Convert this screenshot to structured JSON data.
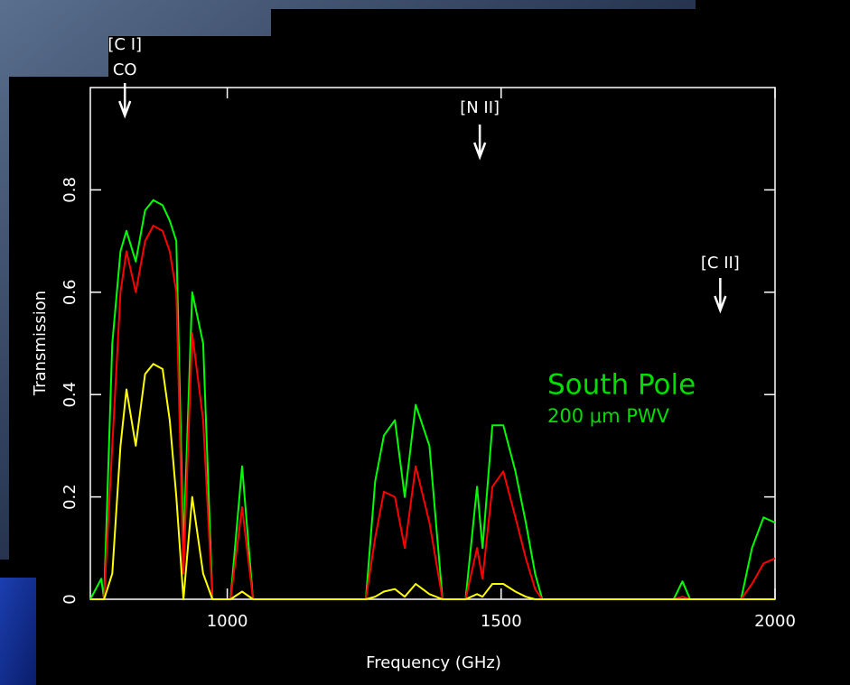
{
  "chart_data": {
    "type": "line",
    "x": [
      750,
      770,
      775,
      790,
      805,
      816,
      833,
      850,
      865,
      882,
      895,
      907,
      920,
      936,
      956,
      973,
      990,
      1006,
      1027,
      1047,
      1100,
      1200,
      1253,
      1270,
      1286,
      1306,
      1324,
      1344,
      1369,
      1393,
      1420,
      1435,
      1456,
      1466,
      1484,
      1504,
      1526,
      1545,
      1562,
      1575,
      1600,
      1700,
      1815,
      1831,
      1845,
      1900,
      1938,
      1958,
      1979,
      2000
    ],
    "series": [
      {
        "color": "#00ff00",
        "values": [
          0,
          0.04,
          0,
          0.5,
          0.68,
          0.72,
          0.66,
          0.76,
          0.78,
          0.77,
          0.74,
          0.7,
          0.1,
          0.6,
          0.5,
          0,
          0,
          0,
          0.26,
          0,
          0,
          0,
          0,
          0.23,
          0.32,
          0.35,
          0.2,
          0.38,
          0.3,
          0,
          0,
          0,
          0.22,
          0.1,
          0.34,
          0.34,
          0.25,
          0.15,
          0.05,
          0,
          0,
          0,
          0,
          0.035,
          0,
          0,
          0,
          0.1,
          0.16,
          0.15
        ]
      },
      {
        "color": "#ff0000",
        "values": [
          0,
          0,
          0,
          0.3,
          0.6,
          0.68,
          0.6,
          0.7,
          0.73,
          0.72,
          0.68,
          0.6,
          0.05,
          0.52,
          0.35,
          0,
          0,
          0,
          0.18,
          0,
          0,
          0,
          0,
          0.12,
          0.21,
          0.2,
          0.1,
          0.26,
          0.15,
          0,
          0,
          0,
          0.1,
          0.04,
          0.22,
          0.25,
          0.16,
          0.08,
          0.02,
          0,
          0,
          0,
          0,
          0.005,
          0,
          0,
          0,
          0.03,
          0.07,
          0.08
        ]
      },
      {
        "color": "#ffff00",
        "values": [
          0,
          0,
          0,
          0.05,
          0.3,
          0.41,
          0.3,
          0.44,
          0.46,
          0.45,
          0.35,
          0.2,
          0,
          0.2,
          0.05,
          0,
          0,
          0,
          0.015,
          0,
          0,
          0,
          0,
          0.005,
          0.015,
          0.02,
          0.005,
          0.03,
          0.01,
          0,
          0,
          0,
          0.01,
          0.005,
          0.03,
          0.03,
          0.015,
          0.005,
          0,
          0,
          0,
          0,
          0,
          0,
          0,
          0,
          0,
          0,
          0,
          0
        ]
      }
    ],
    "xlabel": "Frequency (GHz)",
    "ylabel": "Transmission",
    "xlim": [
      750,
      2000
    ],
    "xticks": [
      1000,
      1500,
      2000
    ],
    "ylim": [
      0,
      1
    ],
    "yticks": [
      0,
      0.2,
      0.4,
      0.6,
      0.8
    ],
    "markers": [
      {
        "labels": [
          "[C I]",
          "CO"
        ],
        "x": 813
      },
      {
        "labels": [
          "[N II]"
        ],
        "x": 1461
      },
      {
        "labels": [
          "[C II]"
        ],
        "x": 1900
      }
    ],
    "site_label": {
      "lines": [
        "South Pole",
        "200 μm PWV"
      ],
      "color": "#00dd00"
    }
  }
}
